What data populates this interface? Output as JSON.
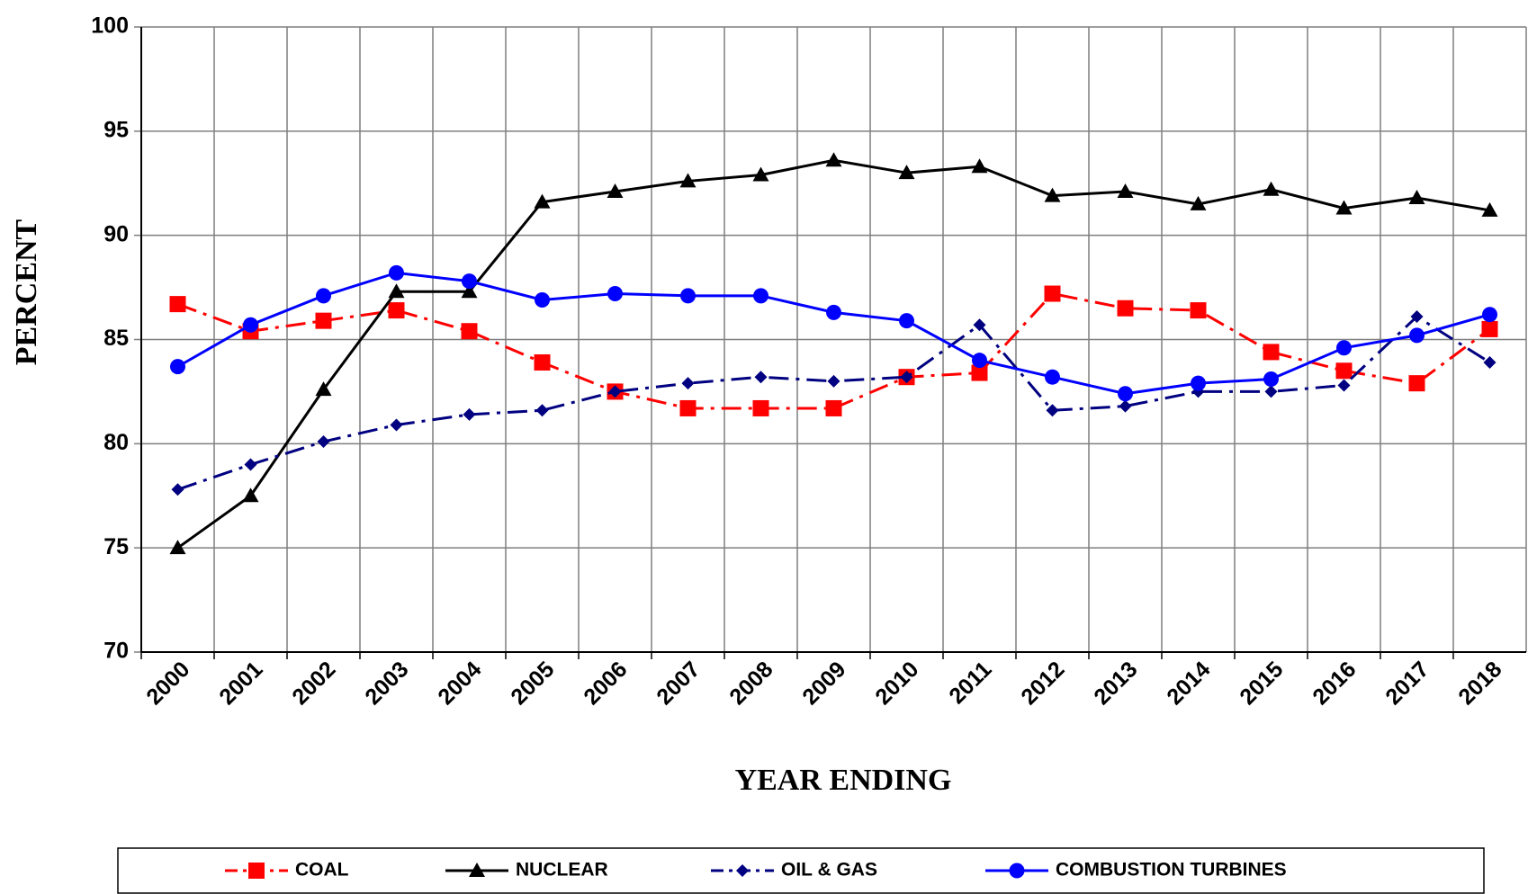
{
  "chart_data": {
    "type": "line",
    "x_label": "YEAR ENDING",
    "y_label": "PERCENT",
    "categories": [
      "2000",
      "2001",
      "2002",
      "2003",
      "2004",
      "2005",
      "2006",
      "2007",
      "2008",
      "2009",
      "2010",
      "2011",
      "2012",
      "2013",
      "2014",
      "2015",
      "2016",
      "2017",
      "2018"
    ],
    "series": [
      {
        "name": "COAL",
        "color": "#ff0000",
        "line_style": "dash-dot",
        "marker": "square",
        "values": [
          86.7,
          85.4,
          85.9,
          86.4,
          85.4,
          83.9,
          82.5,
          81.7,
          81.7,
          81.7,
          83.2,
          83.4,
          87.2,
          86.5,
          86.4,
          84.4,
          83.5,
          82.9,
          85.5
        ]
      },
      {
        "name": "NUCLEAR",
        "color": "#000000",
        "line_style": "solid",
        "marker": "triangle",
        "values": [
          75.0,
          77.5,
          82.6,
          87.3,
          87.3,
          91.6,
          92.1,
          92.6,
          92.9,
          93.6,
          93.0,
          93.3,
          91.9,
          92.1,
          91.5,
          92.2,
          91.3,
          91.8,
          91.2
        ]
      },
      {
        "name": "OIL & GAS",
        "color": "#000080",
        "line_style": "dash-dot",
        "marker": "diamond",
        "values": [
          77.8,
          79.0,
          80.1,
          80.9,
          81.4,
          81.6,
          82.5,
          82.9,
          83.2,
          83.0,
          83.2,
          85.7,
          81.6,
          81.8,
          82.5,
          82.5,
          82.8,
          86.1,
          83.9
        ]
      },
      {
        "name": "COMBUSTION TURBINES",
        "color": "#0000ff",
        "line_style": "solid",
        "marker": "circle",
        "values": [
          83.7,
          85.7,
          87.1,
          88.2,
          87.8,
          86.9,
          87.2,
          87.1,
          87.1,
          86.3,
          85.9,
          84.0,
          83.2,
          82.4,
          82.9,
          83.1,
          84.6,
          85.2,
          86.2
        ]
      }
    ],
    "ylim": [
      70,
      100
    ],
    "yticks": [
      70,
      75,
      80,
      85,
      90,
      95,
      100
    ],
    "grid": true,
    "legend": "bottom"
  }
}
